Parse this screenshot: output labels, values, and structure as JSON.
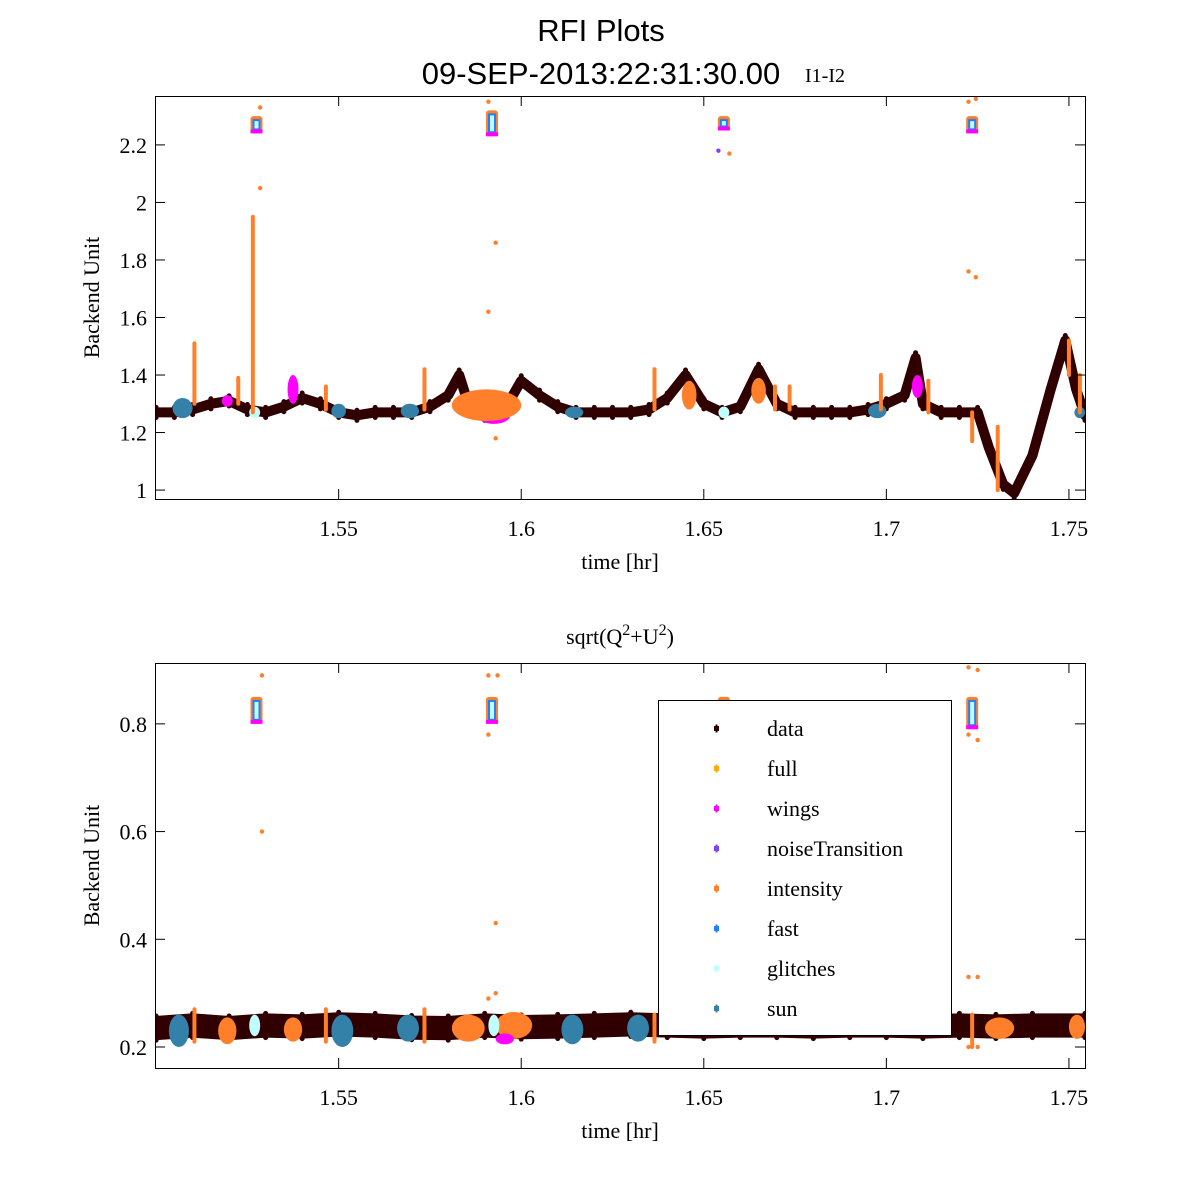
{
  "chart_data": {
    "type": "scatter",
    "title": "RFI Plots",
    "subtitle": "09-SEP-2013:22:31:30.00",
    "overlay_label": "I1-I2",
    "legend": {
      "placement": "bottom-right",
      "entries": [
        {
          "name": "data",
          "color": "#300000"
        },
        {
          "name": "full",
          "color": "#ffaa00"
        },
        {
          "name": "wings",
          "color": "#ff00ff"
        },
        {
          "name": "noiseTransition",
          "color": "#7f3fff"
        },
        {
          "name": "intensity",
          "color": "#ff7f2a"
        },
        {
          "name": "fast",
          "color": "#1f7fff"
        },
        {
          "name": "glitches",
          "color": "#bfffff"
        },
        {
          "name": "sun",
          "color": "#3380a8"
        }
      ]
    },
    "panels": [
      {
        "title": "",
        "xlabel": "time [hr]",
        "ylabel": "Backend Unit",
        "xlim": [
          1.4997,
          1.7544
        ],
        "ylim": [
          0.969,
          2.37
        ],
        "xticks": [
          1.55,
          1.6,
          1.65,
          1.7,
          1.75
        ],
        "xtick_labels": [
          "1.55",
          "1.6",
          "1.65",
          "1.7",
          "1.75"
        ],
        "yticks": [
          1,
          1.2,
          1.4,
          1.6,
          1.8,
          2,
          2.2
        ],
        "ytick_labels": [
          "1",
          "1.2",
          "1.4",
          "1.6",
          "1.8",
          "2",
          "2.2"
        ],
        "data_band": 0.035,
        "data": {
          "x": [
            1.5,
            1.505,
            1.51,
            1.515,
            1.52,
            1.525,
            1.53,
            1.535,
            1.54,
            1.545,
            1.55,
            1.555,
            1.56,
            1.565,
            1.57,
            1.575,
            1.58,
            1.583,
            1.585,
            1.59,
            1.595,
            1.6,
            1.605,
            1.61,
            1.615,
            1.62,
            1.625,
            1.63,
            1.635,
            1.64,
            1.645,
            1.65,
            1.655,
            1.66,
            1.665,
            1.67,
            1.675,
            1.68,
            1.685,
            1.69,
            1.695,
            1.7,
            1.705,
            1.708,
            1.71,
            1.715,
            1.72,
            1.725,
            1.728,
            1.732,
            1.735,
            1.74,
            1.745,
            1.749,
            1.752,
            1.7544
          ],
          "y": [
            1.27,
            1.27,
            1.28,
            1.3,
            1.31,
            1.28,
            1.27,
            1.29,
            1.32,
            1.3,
            1.27,
            1.26,
            1.27,
            1.27,
            1.27,
            1.29,
            1.33,
            1.4,
            1.32,
            1.26,
            1.27,
            1.38,
            1.33,
            1.29,
            1.27,
            1.27,
            1.27,
            1.27,
            1.28,
            1.32,
            1.4,
            1.3,
            1.27,
            1.29,
            1.42,
            1.3,
            1.27,
            1.27,
            1.27,
            1.27,
            1.28,
            1.3,
            1.33,
            1.46,
            1.3,
            1.27,
            1.27,
            1.27,
            1.15,
            1.02,
            0.99,
            1.12,
            1.35,
            1.52,
            1.35,
            1.26
          ]
        },
        "blobs": [
          {
            "series": "sun",
            "x0": 1.5045,
            "x1": 1.51,
            "ylo": 1.25,
            "yhi": 1.32
          },
          {
            "series": "sun",
            "x0": 1.548,
            "x1": 1.552,
            "ylo": 1.25,
            "yhi": 1.3
          },
          {
            "series": "sun",
            "x0": 1.567,
            "x1": 1.572,
            "ylo": 1.25,
            "yhi": 1.3
          },
          {
            "series": "sun",
            "x0": 1.612,
            "x1": 1.617,
            "ylo": 1.25,
            "yhi": 1.29
          },
          {
            "series": "sun",
            "x0": 1.695,
            "x1": 1.7,
            "ylo": 1.25,
            "yhi": 1.3
          },
          {
            "series": "sun",
            "x0": 1.7515,
            "x1": 1.7544,
            "ylo": 1.25,
            "yhi": 1.29
          },
          {
            "series": "wings",
            "x0": 1.518,
            "x1": 1.521,
            "ylo": 1.29,
            "yhi": 1.33
          },
          {
            "series": "wings",
            "x0": 1.536,
            "x1": 1.539,
            "ylo": 1.3,
            "yhi": 1.4
          },
          {
            "series": "wings",
            "x0": 1.588,
            "x1": 1.597,
            "ylo": 1.23,
            "yhi": 1.29
          },
          {
            "series": "wings",
            "x0": 1.707,
            "x1": 1.71,
            "ylo": 1.32,
            "yhi": 1.4
          },
          {
            "series": "intensity",
            "x0": 1.581,
            "x1": 1.6,
            "ylo": 1.24,
            "yhi": 1.35
          },
          {
            "series": "intensity",
            "x0": 1.644,
            "x1": 1.648,
            "ylo": 1.28,
            "yhi": 1.38
          },
          {
            "series": "intensity",
            "x0": 1.663,
            "x1": 1.667,
            "ylo": 1.3,
            "yhi": 1.39
          },
          {
            "series": "glitches",
            "x0": 1.5255,
            "x1": 1.5285,
            "ylo": 1.25,
            "yhi": 1.29
          },
          {
            "series": "glitches",
            "x0": 1.654,
            "x1": 1.657,
            "ylo": 1.25,
            "yhi": 1.29
          }
        ],
        "spikes": [
          {
            "series": "intensity",
            "x": 1.5105,
            "y0": 1.3,
            "y1": 1.51
          },
          {
            "series": "intensity",
            "x": 1.5265,
            "y0": 1.27,
            "y1": 1.95
          },
          {
            "series": "intensity",
            "x": 1.5225,
            "y0": 1.3,
            "y1": 1.39
          },
          {
            "series": "intensity",
            "x": 1.5465,
            "y0": 1.28,
            "y1": 1.36
          },
          {
            "series": "intensity",
            "x": 1.5735,
            "y0": 1.28,
            "y1": 1.42
          },
          {
            "series": "intensity",
            "x": 1.6365,
            "y0": 1.28,
            "y1": 1.42
          },
          {
            "series": "intensity",
            "x": 1.6695,
            "y0": 1.28,
            "y1": 1.36
          },
          {
            "series": "intensity",
            "x": 1.6735,
            "y0": 1.28,
            "y1": 1.36
          },
          {
            "series": "intensity",
            "x": 1.6985,
            "y0": 1.28,
            "y1": 1.4
          },
          {
            "series": "intensity",
            "x": 1.7115,
            "y0": 1.27,
            "y1": 1.38
          },
          {
            "series": "intensity",
            "x": 1.7235,
            "y0": 1.17,
            "y1": 1.27
          },
          {
            "series": "intensity",
            "x": 1.7305,
            "y0": 1.0,
            "y1": 1.22
          },
          {
            "series": "intensity",
            "x": 1.75,
            "y0": 1.4,
            "y1": 1.52
          },
          {
            "series": "intensity",
            "x": 1.753,
            "y0": 1.27,
            "y1": 1.4
          }
        ],
        "clusters": [
          {
            "x": 1.5275,
            "y0": 2.24,
            "y1": 2.3
          },
          {
            "x": 1.592,
            "y0": 2.23,
            "y1": 2.32
          },
          {
            "x": 1.6555,
            "y0": 2.25,
            "y1": 2.3
          },
          {
            "x": 1.7235,
            "y0": 2.24,
            "y1": 2.3
          }
        ],
        "outliers": [
          {
            "series": "intensity",
            "x": 1.5285,
            "y": 2.33
          },
          {
            "series": "intensity",
            "x": 1.5285,
            "y": 2.05
          },
          {
            "series": "intensity",
            "x": 1.591,
            "y": 2.35
          },
          {
            "series": "intensity",
            "x": 1.593,
            "y": 1.86
          },
          {
            "series": "intensity",
            "x": 1.591,
            "y": 1.62
          },
          {
            "series": "intensity",
            "x": 1.593,
            "y": 1.18
          },
          {
            "series": "noiseTransition",
            "x": 1.654,
            "y": 2.18
          },
          {
            "series": "intensity",
            "x": 1.657,
            "y": 2.17
          },
          {
            "series": "intensity",
            "x": 1.7225,
            "y": 2.35
          },
          {
            "series": "intensity",
            "x": 1.7245,
            "y": 2.36
          },
          {
            "series": "intensity",
            "x": 1.7225,
            "y": 1.76
          },
          {
            "series": "intensity",
            "x": 1.7245,
            "y": 1.74
          }
        ]
      },
      {
        "title": "sqrt(Q",
        "title_sup1": "2",
        "title_mid": "+U",
        "title_sup2": "2",
        "title_end": ")",
        "xlabel": "time [hr]",
        "ylabel": "Backend Unit",
        "xlim": [
          1.4997,
          1.7544
        ],
        "ylim": [
          0.161,
          0.913
        ],
        "xticks": [
          1.55,
          1.6,
          1.65,
          1.7,
          1.75
        ],
        "xtick_labels": [
          "1.55",
          "1.6",
          "1.65",
          "1.7",
          "1.75"
        ],
        "yticks": [
          0.2,
          0.4,
          0.6,
          0.8
        ],
        "ytick_labels": [
          "0.2",
          "0.4",
          "0.6",
          "0.8"
        ],
        "data_band": 0.045,
        "data": {
          "x": [
            1.5,
            1.51,
            1.52,
            1.53,
            1.54,
            1.55,
            1.56,
            1.57,
            1.58,
            1.59,
            1.6,
            1.61,
            1.62,
            1.63,
            1.64,
            1.65,
            1.66,
            1.67,
            1.68,
            1.69,
            1.7,
            1.71,
            1.72,
            1.73,
            1.74,
            1.7544
          ],
          "y": [
            0.235,
            0.24,
            0.235,
            0.24,
            0.238,
            0.242,
            0.24,
            0.236,
            0.235,
            0.24,
            0.237,
            0.238,
            0.24,
            0.242,
            0.24,
            0.238,
            0.24,
            0.24,
            0.238,
            0.24,
            0.24,
            0.238,
            0.24,
            0.238,
            0.24,
            0.24
          ]
        },
        "blobs": [
          {
            "series": "sun",
            "x0": 1.5035,
            "x1": 1.509,
            "ylo": 0.2,
            "yhi": 0.26
          },
          {
            "series": "sun",
            "x0": 1.548,
            "x1": 1.554,
            "ylo": 0.2,
            "yhi": 0.26
          },
          {
            "series": "sun",
            "x0": 1.566,
            "x1": 1.572,
            "ylo": 0.21,
            "yhi": 0.26
          },
          {
            "series": "sun",
            "x0": 1.611,
            "x1": 1.617,
            "ylo": 0.205,
            "yhi": 0.26
          },
          {
            "series": "sun",
            "x0": 1.629,
            "x1": 1.635,
            "ylo": 0.21,
            "yhi": 0.26
          },
          {
            "series": "intensity",
            "x0": 1.517,
            "x1": 1.522,
            "ylo": 0.205,
            "yhi": 0.255
          },
          {
            "series": "intensity",
            "x0": 1.535,
            "x1": 1.54,
            "ylo": 0.21,
            "yhi": 0.255
          },
          {
            "series": "intensity",
            "x0": 1.581,
            "x1": 1.59,
            "ylo": 0.21,
            "yhi": 0.26
          },
          {
            "series": "intensity",
            "x0": 1.593,
            "x1": 1.603,
            "ylo": 0.215,
            "yhi": 0.265
          },
          {
            "series": "wings",
            "x0": 1.593,
            "x1": 1.598,
            "ylo": 0.205,
            "yhi": 0.225
          },
          {
            "series": "intensity",
            "x0": 1.727,
            "x1": 1.735,
            "ylo": 0.215,
            "yhi": 0.255
          },
          {
            "series": "intensity",
            "x0": 1.75,
            "x1": 1.7544,
            "ylo": 0.215,
            "yhi": 0.26
          },
          {
            "series": "glitches",
            "x0": 1.5255,
            "x1": 1.5285,
            "ylo": 0.22,
            "yhi": 0.26
          },
          {
            "series": "glitches",
            "x0": 1.591,
            "x1": 1.594,
            "ylo": 0.22,
            "yhi": 0.26
          }
        ],
        "spikes": [
          {
            "series": "intensity",
            "x": 1.5105,
            "y0": 0.21,
            "y1": 0.27
          },
          {
            "series": "intensity",
            "x": 1.5465,
            "y0": 0.21,
            "y1": 0.27
          },
          {
            "series": "intensity",
            "x": 1.5735,
            "y0": 0.21,
            "y1": 0.27
          },
          {
            "series": "intensity",
            "x": 1.6365,
            "y0": 0.21,
            "y1": 0.26
          },
          {
            "series": "intensity",
            "x": 1.7235,
            "y0": 0.2,
            "y1": 0.26
          }
        ],
        "clusters": [
          {
            "x": 1.5275,
            "y0": 0.8,
            "y1": 0.85
          },
          {
            "x": 1.592,
            "y0": 0.8,
            "y1": 0.85
          },
          {
            "x": 1.6555,
            "y0": 0.81,
            "y1": 0.85
          },
          {
            "x": 1.7235,
            "y0": 0.79,
            "y1": 0.85
          }
        ],
        "outliers": [
          {
            "series": "intensity",
            "x": 1.529,
            "y": 0.89
          },
          {
            "series": "intensity",
            "x": 1.529,
            "y": 0.6
          },
          {
            "series": "intensity",
            "x": 1.591,
            "y": 0.89
          },
          {
            "series": "intensity",
            "x": 1.5935,
            "y": 0.89
          },
          {
            "series": "intensity",
            "x": 1.591,
            "y": 0.78
          },
          {
            "series": "intensity",
            "x": 1.593,
            "y": 0.43
          },
          {
            "series": "intensity",
            "x": 1.591,
            "y": 0.29
          },
          {
            "series": "intensity",
            "x": 1.593,
            "y": 0.3
          },
          {
            "series": "noiseTransition",
            "x": 1.655,
            "y": 0.74
          },
          {
            "series": "intensity",
            "x": 1.657,
            "y": 0.735
          },
          {
            "series": "intensity",
            "x": 1.7225,
            "y": 0.905
          },
          {
            "series": "intensity",
            "x": 1.725,
            "y": 0.9
          },
          {
            "series": "intensity",
            "x": 1.7225,
            "y": 0.78
          },
          {
            "series": "intensity",
            "x": 1.725,
            "y": 0.77
          },
          {
            "series": "intensity",
            "x": 1.7225,
            "y": 0.33
          },
          {
            "series": "intensity",
            "x": 1.725,
            "y": 0.33
          },
          {
            "series": "intensity",
            "x": 1.7225,
            "y": 0.2
          },
          {
            "series": "intensity",
            "x": 1.725,
            "y": 0.2
          }
        ]
      }
    ]
  }
}
